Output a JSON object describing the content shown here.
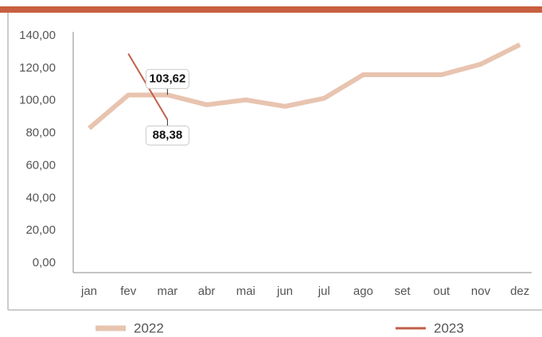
{
  "chart_data": {
    "type": "line",
    "categories": [
      "jan",
      "fev",
      "mar",
      "abr",
      "mai",
      "jun",
      "jul",
      "ago",
      "set",
      "out",
      "nov",
      "dez"
    ],
    "series": [
      {
        "name": "2022",
        "color": "#e8c4b0",
        "values": [
          83,
          103.5,
          103.62,
          97.5,
          100.5,
          96.5,
          101.5,
          116,
          116,
          116,
          122.5,
          134.5
        ],
        "value_labels": [
          null,
          null,
          "103,62",
          null,
          null,
          null,
          null,
          null,
          null,
          null,
          null,
          null
        ]
      },
      {
        "name": "2023",
        "color": "#c0604a",
        "values": [
          null,
          129,
          88.38,
          null,
          null,
          null,
          null,
          null,
          null,
          null,
          null,
          null
        ],
        "value_labels": [
          null,
          null,
          "88,38",
          null,
          null,
          null,
          null,
          null,
          null,
          null,
          null,
          null
        ]
      }
    ],
    "ylim": [
      0,
      140
    ],
    "yticks": [
      {
        "value": 0,
        "label": "0,00"
      },
      {
        "value": 20,
        "label": "20,00"
      },
      {
        "value": 40,
        "label": "40,00"
      },
      {
        "value": 60,
        "label": "60,00"
      },
      {
        "value": 80,
        "label": "80,00"
      },
      {
        "value": 100,
        "label": "100,00"
      },
      {
        "value": 120,
        "label": "120,00"
      },
      {
        "value": 140,
        "label": "140,00"
      }
    ]
  }
}
